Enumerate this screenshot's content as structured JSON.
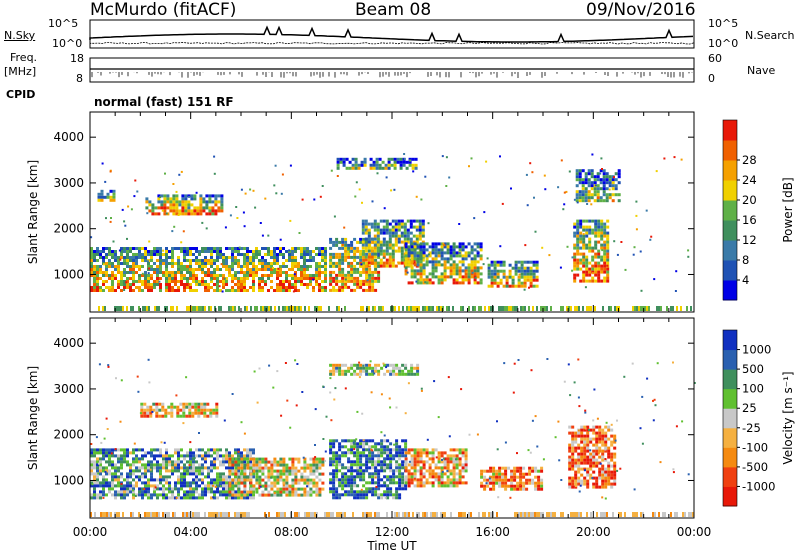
{
  "header": {
    "station": "McMurdo (fitACF)",
    "beam": "Beam 08",
    "date": "09/Nov/2016"
  },
  "top_panels": {
    "nsky_label": "N.Sky",
    "nsearch_label": "N.Search",
    "freq_label_line1": "Freq.",
    "freq_label_line2": "[MHz]",
    "nave_label": "Nave",
    "cpid_label": "CPID",
    "mode_text": "normal (fast) 151 RF",
    "noise_ticks_left": [
      "10^5",
      "10^0"
    ],
    "noise_ticks_right": [
      "10^5",
      "10^0"
    ],
    "freq_ticks": [
      "18",
      "8"
    ],
    "nave_ticks": [
      "60",
      "0"
    ]
  },
  "chart_data": [
    {
      "type": "heatmap",
      "name": "power_panel",
      "ylabel": "Slant Range [km]",
      "ylim": [
        180,
        4550
      ],
      "yticks": [
        "1000",
        "2000",
        "3000",
        "4000"
      ],
      "xlim": [
        0,
        24
      ],
      "colorbar": {
        "label": "Power [dB]",
        "ticks": [
          "4",
          "8",
          "12",
          "16",
          "20",
          "24",
          "28"
        ],
        "colors": [
          "#0000e6",
          "#1f52b4",
          "#3a7aa8",
          "#3f8f5d",
          "#5fb047",
          "#f0d000",
          "#f5a000",
          "#f06000",
          "#e81808"
        ]
      },
      "echo_regions": [
        {
          "t0": 0.0,
          "t1": 9.3,
          "r0": 650,
          "r1": 1600,
          "level": 0.55
        },
        {
          "t0": 2.2,
          "t1": 5.2,
          "r0": 2350,
          "r1": 2750,
          "level": 0.55
        },
        {
          "t0": 0.3,
          "t1": 1.0,
          "r0": 2600,
          "r1": 2850,
          "level": 0.35
        },
        {
          "t0": 9.5,
          "t1": 11.5,
          "r0": 650,
          "r1": 1800,
          "level": 0.6
        },
        {
          "t0": 10.8,
          "t1": 13.2,
          "r0": 1200,
          "r1": 2200,
          "level": 0.5
        },
        {
          "t0": 12.5,
          "t1": 15.5,
          "r0": 800,
          "r1": 1700,
          "level": 0.5
        },
        {
          "t0": 15.8,
          "t1": 17.8,
          "r0": 750,
          "r1": 1300,
          "level": 0.5
        },
        {
          "t0": 19.2,
          "t1": 20.6,
          "r0": 850,
          "r1": 2200,
          "level": 0.6
        },
        {
          "t0": 19.3,
          "t1": 21.0,
          "r0": 2600,
          "r1": 3300,
          "level": 0.35
        },
        {
          "t0": 9.8,
          "t1": 13.0,
          "r0": 3300,
          "r1": 3550,
          "level": 0.35
        }
      ]
    },
    {
      "type": "heatmap",
      "name": "velocity_panel",
      "ylabel": "Slant Range [km]",
      "ylim": [
        180,
        4550
      ],
      "yticks": [
        "1000",
        "2000",
        "3000",
        "4000"
      ],
      "xlabel": "Time UT",
      "xlim": [
        0,
        24
      ],
      "xticks": [
        "00:00",
        "04:00",
        "08:00",
        "12:00",
        "16:00",
        "20:00",
        "00:00"
      ],
      "colorbar": {
        "label": "Velocity [m s⁻¹]",
        "ticks": [
          "-1000",
          "-500",
          "-100",
          "-25",
          "25",
          "100",
          "500",
          "1000"
        ],
        "colors": [
          "#e81808",
          "#f04010",
          "#f58a10",
          "#f5b040",
          "#c8c8c8",
          "#60c030",
          "#3f8f5d",
          "#2a60b0",
          "#1030c0"
        ]
      },
      "echo_regions": [
        {
          "t0": 0.0,
          "t1": 6.5,
          "r0": 650,
          "r1": 1700,
          "level": 0.7
        },
        {
          "t0": 5.5,
          "t1": 9.3,
          "r0": 650,
          "r1": 1500,
          "level": 0.45
        },
        {
          "t0": 2.0,
          "t1": 5.0,
          "r0": 2400,
          "r1": 2700,
          "level": 0.4
        },
        {
          "t0": 9.5,
          "t1": 12.5,
          "r0": 650,
          "r1": 1900,
          "level": 0.8
        },
        {
          "t0": 12.5,
          "t1": 15.0,
          "r0": 900,
          "r1": 1700,
          "level": 0.35
        },
        {
          "t0": 15.5,
          "t1": 18.0,
          "r0": 800,
          "r1": 1300,
          "level": 0.3
        },
        {
          "t0": 19.0,
          "t1": 20.8,
          "r0": 850,
          "r1": 2200,
          "level": 0.25
        },
        {
          "t0": 9.5,
          "t1": 13.0,
          "r0": 3300,
          "r1": 3550,
          "level": 0.55
        }
      ]
    }
  ]
}
